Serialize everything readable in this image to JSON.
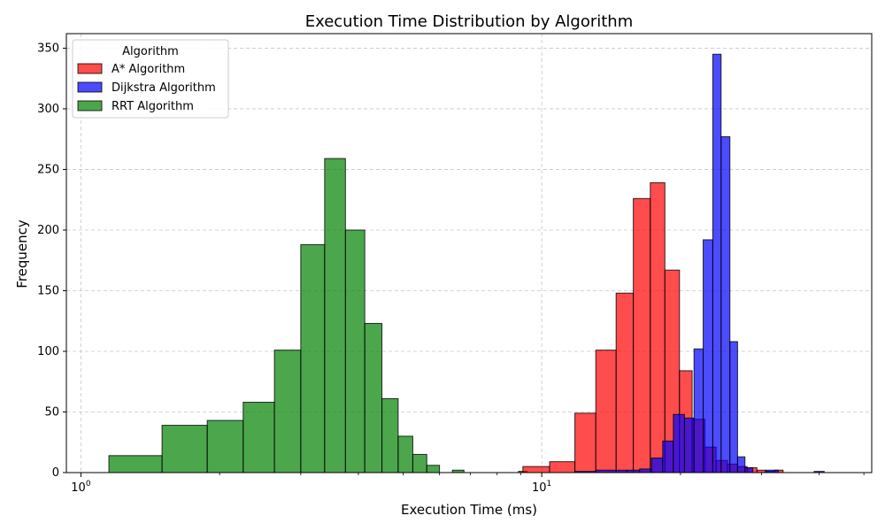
{
  "chart_data": {
    "type": "histogram",
    "title": "Execution Time Distribution by Algorithm",
    "xlabel": "Execution Time (ms)",
    "ylabel": "Frequency",
    "xscale": "log",
    "xlim": [
      0.93,
      52
    ],
    "ylim": [
      0,
      362
    ],
    "x_tick_labels": [
      {
        "value": 1,
        "base": "10",
        "exp": "0"
      },
      {
        "value": 10,
        "base": "10",
        "exp": "1"
      }
    ],
    "y_ticks": [
      0,
      50,
      100,
      150,
      200,
      250,
      300,
      350
    ],
    "grid": true,
    "legend": {
      "title": "Algorithm",
      "placement": "top-left"
    },
    "series": [
      {
        "name": "RRT Algorithm",
        "color": "#008000",
        "bins": [
          {
            "x0": 1.15,
            "x1": 1.5,
            "count": 14
          },
          {
            "x0": 1.5,
            "x1": 1.88,
            "count": 39
          },
          {
            "x0": 1.88,
            "x1": 2.25,
            "count": 43
          },
          {
            "x0": 2.25,
            "x1": 2.63,
            "count": 58
          },
          {
            "x0": 2.63,
            "x1": 3.0,
            "count": 101
          },
          {
            "x0": 3.0,
            "x1": 3.38,
            "count": 188
          },
          {
            "x0": 3.38,
            "x1": 3.75,
            "count": 259
          },
          {
            "x0": 3.75,
            "x1": 4.13,
            "count": 200
          },
          {
            "x0": 4.13,
            "x1": 4.5,
            "count": 123
          },
          {
            "x0": 4.5,
            "x1": 4.88,
            "count": 61
          },
          {
            "x0": 4.88,
            "x1": 5.25,
            "count": 30
          },
          {
            "x0": 5.25,
            "x1": 5.63,
            "count": 15
          },
          {
            "x0": 5.63,
            "x1": 6.0,
            "count": 6
          },
          {
            "x0": 6.4,
            "x1": 6.78,
            "count": 2
          },
          {
            "x0": 8.9,
            "x1": 9.3,
            "count": 1
          }
        ]
      },
      {
        "name": "A* Algorithm",
        "color": "#ff0000",
        "bins": [
          {
            "x0": 9.1,
            "x1": 10.4,
            "count": 5
          },
          {
            "x0": 10.4,
            "x1": 11.8,
            "count": 9
          },
          {
            "x0": 11.8,
            "x1": 13.1,
            "count": 49
          },
          {
            "x0": 13.1,
            "x1": 14.5,
            "count": 101
          },
          {
            "x0": 14.5,
            "x1": 15.8,
            "count": 148
          },
          {
            "x0": 15.8,
            "x1": 17.2,
            "count": 226
          },
          {
            "x0": 17.2,
            "x1": 18.5,
            "count": 239
          },
          {
            "x0": 18.5,
            "x1": 19.9,
            "count": 167
          },
          {
            "x0": 19.9,
            "x1": 21.2,
            "count": 84
          },
          {
            "x0": 21.2,
            "x1": 22.6,
            "count": 44
          },
          {
            "x0": 22.6,
            "x1": 23.9,
            "count": 21
          },
          {
            "x0": 23.9,
            "x1": 25.3,
            "count": 10
          },
          {
            "x0": 25.3,
            "x1": 26.6,
            "count": 7
          },
          {
            "x0": 26.6,
            "x1": 27.9,
            "count": 5
          },
          {
            "x0": 27.9,
            "x1": 29.3,
            "count": 4
          },
          {
            "x0": 29.3,
            "x1": 30.6,
            "count": 2
          },
          {
            "x0": 30.6,
            "x1": 32.0,
            "count": 1
          },
          {
            "x0": 32.0,
            "x1": 33.4,
            "count": 2
          }
        ]
      },
      {
        "name": "Dijkstra Algorithm",
        "color": "#0000ff",
        "bins": [
          {
            "x0": 11.8,
            "x1": 13.1,
            "count": 1
          },
          {
            "x0": 13.1,
            "x1": 14.5,
            "count": 2
          },
          {
            "x0": 14.5,
            "x1": 15.3,
            "count": 2
          },
          {
            "x0": 15.3,
            "x1": 16.3,
            "count": 2
          },
          {
            "x0": 16.3,
            "x1": 17.3,
            "count": 3
          },
          {
            "x0": 17.3,
            "x1": 18.3,
            "count": 12
          },
          {
            "x0": 18.3,
            "x1": 19.3,
            "count": 26
          },
          {
            "x0": 19.3,
            "x1": 20.4,
            "count": 48
          },
          {
            "x0": 20.4,
            "x1": 21.4,
            "count": 45
          },
          {
            "x0": 21.4,
            "x1": 22.4,
            "count": 102
          },
          {
            "x0": 22.4,
            "x1": 23.5,
            "count": 192
          },
          {
            "x0": 23.5,
            "x1": 24.5,
            "count": 345
          },
          {
            "x0": 24.5,
            "x1": 25.6,
            "count": 277
          },
          {
            "x0": 25.6,
            "x1": 26.6,
            "count": 108
          },
          {
            "x0": 26.6,
            "x1": 27.6,
            "count": 13
          },
          {
            "x0": 27.6,
            "x1": 28.7,
            "count": 4
          },
          {
            "x0": 30.6,
            "x1": 32.6,
            "count": 2
          },
          {
            "x0": 39.0,
            "x1": 41.0,
            "count": 1
          }
        ]
      }
    ],
    "legend_order": [
      "A* Algorithm",
      "Dijkstra Algorithm",
      "RRT Algorithm"
    ]
  }
}
